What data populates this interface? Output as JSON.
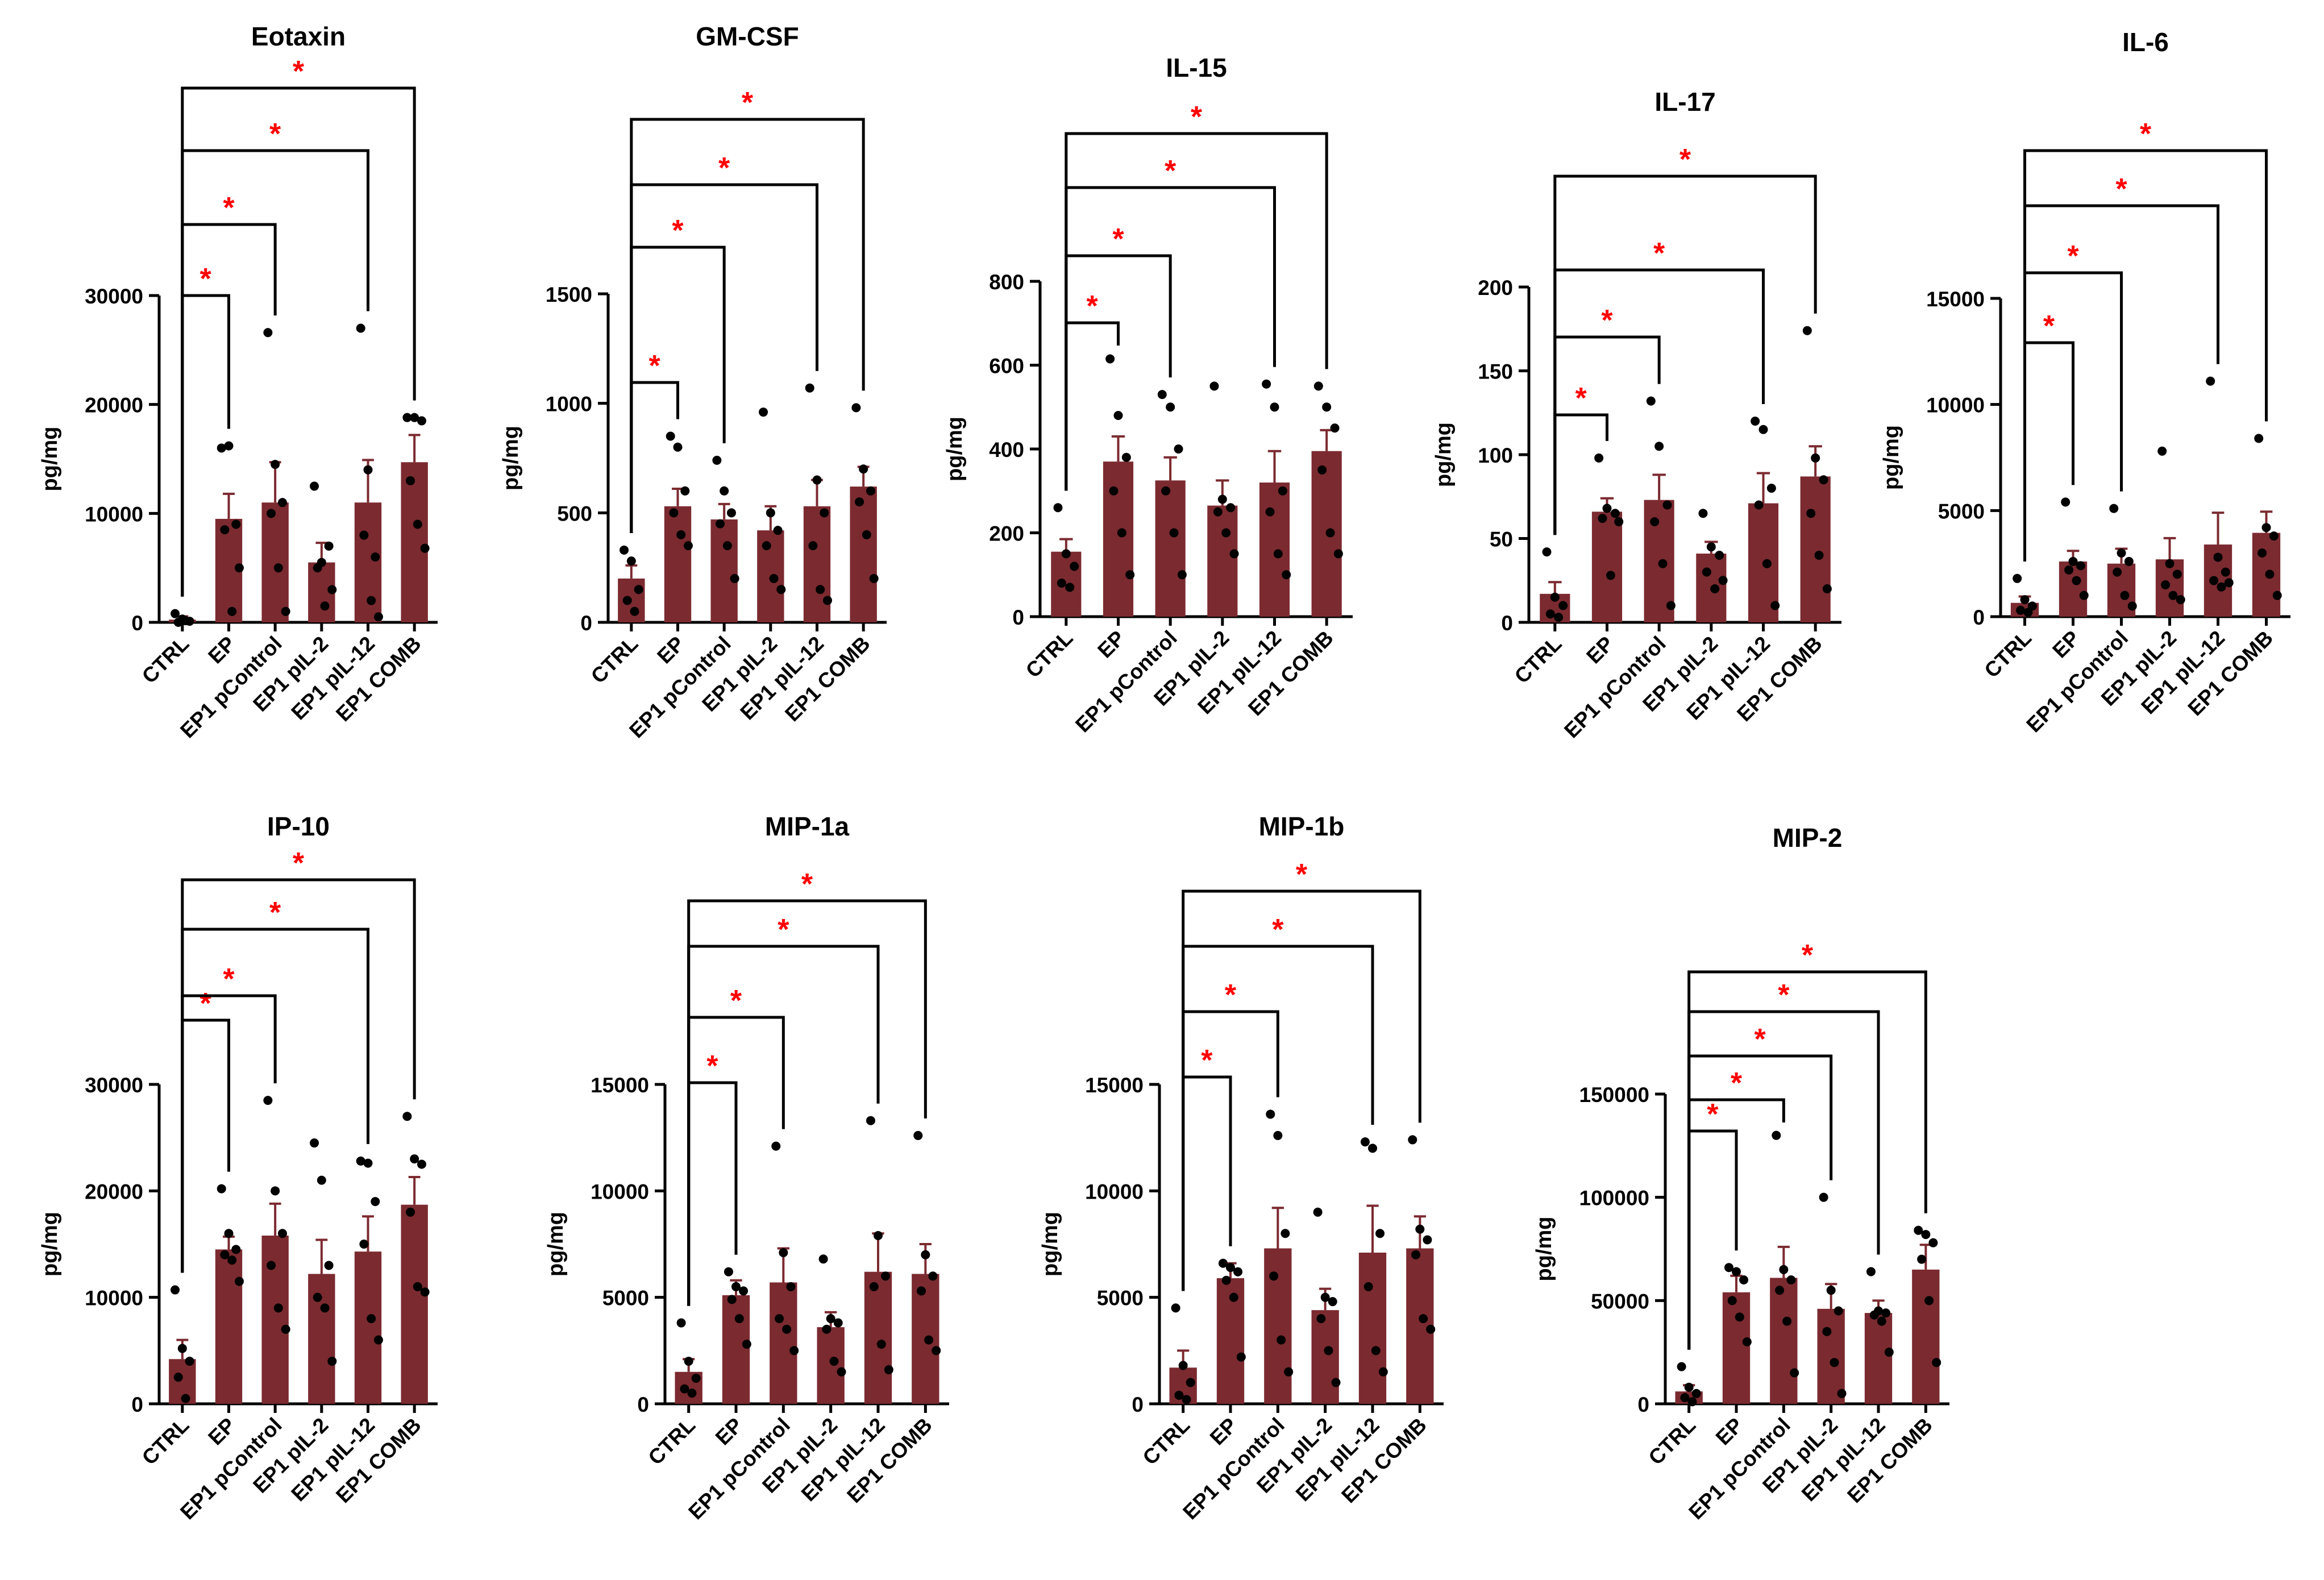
{
  "figure": {
    "colors": {
      "bar": "#7b2a30",
      "axis": "#000000",
      "star": "#ff0000",
      "point": "#000000"
    },
    "group_labels": [
      "CTRL",
      "EP",
      "EP1 pControl",
      "EP1 pIL-2",
      "EP1 pIL-12",
      "EP1 COMB"
    ],
    "significance_symbol": "*"
  },
  "chart_data": [
    {
      "type": "bar",
      "title": "Eotaxin",
      "ylabel": "pg/mg",
      "categories": [
        "CTRL",
        "EP",
        "EP1 pControl",
        "EP1 pIL-2",
        "EP1 pIL-12",
        "EP1 COMB"
      ],
      "values": [
        250,
        9500,
        11000,
        5500,
        11000,
        14700
      ],
      "sem": [
        300,
        2300,
        3700,
        1800,
        3900,
        2500
      ],
      "points": [
        [
          800,
          300,
          100,
          0,
          150
        ],
        [
          16000,
          16200,
          9000,
          8500,
          1000,
          5000
        ],
        [
          26600,
          14500,
          11000,
          10000,
          5000,
          1000
        ],
        [
          12500,
          5500,
          7000,
          5000,
          1500,
          3000
        ],
        [
          27000,
          14000,
          6000,
          8000,
          2000,
          500
        ],
        [
          18800,
          18800,
          18500,
          13000,
          9000,
          6800
        ]
      ],
      "ylim": [
        0,
        30000
      ],
      "yticks": [
        0,
        10000,
        20000,
        30000
      ],
      "ytick_labels": [
        "0",
        "10000",
        "20000",
        "30000"
      ],
      "comparisons": [
        {
          "from": "CTRL",
          "to": "EP"
        },
        {
          "from": "CTRL",
          "to": "EP1 pControl"
        },
        {
          "from": "CTRL",
          "to": "EP1 pIL-12"
        },
        {
          "from": "CTRL",
          "to": "EP1 COMB"
        }
      ]
    },
    {
      "type": "bar",
      "title": "GM-CSF",
      "ylabel": "pg/mg",
      "categories": [
        "CTRL",
        "EP",
        "EP1 pControl",
        "EP1 pIL-2",
        "EP1 pIL-12",
        "EP1 COMB"
      ],
      "values": [
        200,
        530,
        470,
        420,
        530,
        620
      ],
      "sem": [
        60,
        80,
        70,
        110,
        120,
        90
      ],
      "points": [
        [
          330,
          280,
          150,
          100,
          50
        ],
        [
          850,
          800,
          600,
          500,
          400,
          350
        ],
        [
          740,
          600,
          500,
          450,
          350,
          200
        ],
        [
          960,
          500,
          420,
          350,
          200,
          150
        ],
        [
          1070,
          650,
          500,
          350,
          150,
          100
        ],
        [
          980,
          700,
          600,
          550,
          400,
          200
        ]
      ],
      "ylim": [
        0,
        1500
      ],
      "yticks": [
        0,
        500,
        1000,
        1500
      ],
      "ytick_labels": [
        "0",
        "500",
        "1000",
        "1500"
      ],
      "comparisons": [
        {
          "from": "CTRL",
          "to": "EP"
        },
        {
          "from": "CTRL",
          "to": "EP1 pControl"
        },
        {
          "from": "CTRL",
          "to": "EP1 pIL-12"
        },
        {
          "from": "CTRL",
          "to": "EP1 COMB"
        }
      ]
    },
    {
      "type": "bar",
      "title": "IL-15",
      "ylabel": "pg/mg",
      "categories": [
        "CTRL",
        "EP",
        "EP1 pControl",
        "EP1 pIL-2",
        "EP1 pIL-12",
        "EP1 COMB"
      ],
      "values": [
        155,
        370,
        325,
        265,
        320,
        395
      ],
      "sem": [
        30,
        60,
        55,
        60,
        75,
        50
      ],
      "points": [
        [
          260,
          150,
          120,
          80,
          70
        ],
        [
          615,
          480,
          380,
          300,
          200,
          100
        ],
        [
          530,
          500,
          400,
          300,
          200,
          100
        ],
        [
          550,
          280,
          260,
          250,
          200,
          150
        ],
        [
          555,
          500,
          300,
          250,
          150,
          100
        ],
        [
          550,
          500,
          450,
          350,
          200,
          150
        ]
      ],
      "ylim": [
        0,
        800
      ],
      "yticks": [
        0,
        200,
        400,
        600,
        800
      ],
      "ytick_labels": [
        "0",
        "200",
        "400",
        "600",
        "800"
      ],
      "comparisons": [
        {
          "from": "CTRL",
          "to": "EP"
        },
        {
          "from": "CTRL",
          "to": "EP1 pControl"
        },
        {
          "from": "CTRL",
          "to": "EP1 pIL-12"
        },
        {
          "from": "CTRL",
          "to": "EP1 COMB"
        }
      ]
    },
    {
      "type": "bar",
      "title": "IL-17",
      "ylabel": "pg/mg",
      "categories": [
        "CTRL",
        "EP",
        "EP1 pControl",
        "EP1 pIL-2",
        "EP1 pIL-12",
        "EP1 COMB"
      ],
      "values": [
        17,
        66,
        73,
        41,
        71,
        87
      ],
      "sem": [
        7,
        8,
        15,
        7,
        18,
        18
      ],
      "points": [
        [
          42,
          15,
          10,
          5,
          3
        ],
        [
          98,
          68,
          65,
          62,
          28,
          60
        ],
        [
          132,
          105,
          70,
          60,
          35,
          10
        ],
        [
          65,
          45,
          40,
          30,
          20,
          25
        ],
        [
          120,
          115,
          80,
          70,
          35,
          10
        ],
        [
          174,
          98,
          85,
          65,
          40,
          20
        ]
      ],
      "ylim": [
        0,
        200
      ],
      "yticks": [
        0,
        50,
        100,
        150,
        200
      ],
      "ytick_labels": [
        "0",
        "50",
        "100",
        "150",
        "200"
      ],
      "comparisons": [
        {
          "from": "CTRL",
          "to": "EP"
        },
        {
          "from": "CTRL",
          "to": "EP1 pControl"
        },
        {
          "from": "CTRL",
          "to": "EP1 pIL-12"
        },
        {
          "from": "CTRL",
          "to": "EP1 COMB"
        }
      ]
    },
    {
      "type": "bar",
      "title": "IL-6",
      "ylabel": "pg/mg",
      "categories": [
        "CTRL",
        "EP",
        "EP1 pControl",
        "EP1 pIL-2",
        "EP1 pIL-12",
        "EP1 COMB"
      ],
      "values": [
        650,
        2600,
        2500,
        2700,
        3400,
        3950
      ],
      "sem": [
        300,
        500,
        700,
        1000,
        1500,
        1000
      ],
      "points": [
        [
          1800,
          800,
          500,
          300,
          200
        ],
        [
          5400,
          2600,
          2400,
          2200,
          1700,
          1000
        ],
        [
          5100,
          3000,
          2600,
          2100,
          1000,
          500
        ],
        [
          7800,
          2500,
          2000,
          1500,
          1000,
          800
        ],
        [
          11100,
          2800,
          2100,
          1700,
          1400,
          1600
        ],
        [
          8400,
          4200,
          3800,
          3000,
          2000,
          1000
        ]
      ],
      "ylim": [
        0,
        15000
      ],
      "yticks": [
        0,
        5000,
        10000,
        15000
      ],
      "ytick_labels": [
        "0",
        "5000",
        "10000",
        "15000"
      ],
      "comparisons": [
        {
          "from": "CTRL",
          "to": "EP"
        },
        {
          "from": "CTRL",
          "to": "EP1 pControl"
        },
        {
          "from": "CTRL",
          "to": "EP1 pIL-12"
        },
        {
          "from": "CTRL",
          "to": "EP1 COMB"
        }
      ]
    },
    {
      "type": "bar",
      "title": "IP-10",
      "ylabel": "pg/mg",
      "categories": [
        "CTRL",
        "EP",
        "EP1 pControl",
        "EP1 pIL-2",
        "EP1 pIL-12",
        "EP1 COMB"
      ],
      "values": [
        4200,
        14500,
        15800,
        12200,
        14300,
        18700
      ],
      "sem": [
        1800,
        1200,
        3000,
        3200,
        3300,
        2600
      ],
      "points": [
        [
          10700,
          5200,
          4000,
          2500,
          500
        ],
        [
          20200,
          16000,
          14500,
          14000,
          13500,
          11500
        ],
        [
          28500,
          20000,
          16000,
          13000,
          9000,
          7000
        ],
        [
          24500,
          21000,
          13000,
          10000,
          9000,
          4000
        ],
        [
          22800,
          22600,
          19000,
          15000,
          8000,
          6000
        ],
        [
          27000,
          23000,
          22500,
          18000,
          11000,
          10500
        ]
      ],
      "ylim": [
        0,
        30000
      ],
      "yticks": [
        0,
        10000,
        20000,
        30000
      ],
      "ytick_labels": [
        "0",
        "10000",
        "20000",
        "30000"
      ],
      "comparisons": [
        {
          "from": "CTRL",
          "to": "EP"
        },
        {
          "from": "CTRL",
          "to": "EP1 pControl"
        },
        {
          "from": "CTRL",
          "to": "EP1 pIL-12"
        },
        {
          "from": "CTRL",
          "to": "EP1 COMB"
        }
      ]
    },
    {
      "type": "bar",
      "title": "MIP-1a",
      "ylabel": "pg/mg",
      "categories": [
        "CTRL",
        "EP",
        "EP1 pControl",
        "EP1 pIL-2",
        "EP1 pIL-12",
        "EP1 COMB"
      ],
      "values": [
        1500,
        5100,
        5700,
        3600,
        6200,
        6100
      ],
      "sem": [
        600,
        700,
        1600,
        700,
        1800,
        1400
      ],
      "points": [
        [
          3800,
          2000,
          1200,
          700,
          500
        ],
        [
          6200,
          5500,
          5300,
          4900,
          4000,
          2800
        ],
        [
          12100,
          7100,
          5500,
          4000,
          3500,
          2500
        ],
        [
          6800,
          4000,
          3800,
          3500,
          2000,
          1500
        ],
        [
          13300,
          7900,
          6000,
          5500,
          2800,
          1600
        ],
        [
          12600,
          7000,
          6000,
          5300,
          3000,
          2500
        ]
      ],
      "ylim": [
        0,
        15000
      ],
      "yticks": [
        0,
        5000,
        10000,
        15000
      ],
      "ytick_labels": [
        "0",
        "5000",
        "10000",
        "15000"
      ],
      "comparisons": [
        {
          "from": "CTRL",
          "to": "EP"
        },
        {
          "from": "CTRL",
          "to": "EP1 pControl"
        },
        {
          "from": "CTRL",
          "to": "EP1 pIL-12"
        },
        {
          "from": "CTRL",
          "to": "EP1 COMB"
        }
      ]
    },
    {
      "type": "bar",
      "title": "MIP-1b",
      "ylabel": "pg/mg",
      "categories": [
        "CTRL",
        "EP",
        "EP1 pControl",
        "EP1 pIL-2",
        "EP1 pIL-12",
        "EP1 COMB"
      ],
      "values": [
        1700,
        5900,
        7300,
        4400,
        7100,
        7300
      ],
      "sem": [
        800,
        700,
        1900,
        1000,
        2200,
        1500
      ],
      "points": [
        [
          4500,
          1800,
          1000,
          400,
          200
        ],
        [
          6600,
          6400,
          6200,
          5800,
          5000,
          2200
        ],
        [
          13600,
          12600,
          8000,
          6000,
          3000,
          1500
        ],
        [
          9000,
          5000,
          4800,
          4000,
          2500,
          1000
        ],
        [
          12300,
          12000,
          8000,
          5500,
          2500,
          1500
        ],
        [
          12400,
          8200,
          7700,
          7000,
          4000,
          3500
        ]
      ],
      "ylim": [
        0,
        15000
      ],
      "yticks": [
        0,
        5000,
        10000,
        15000
      ],
      "ytick_labels": [
        "0",
        "5000",
        "10000",
        "15000"
      ],
      "comparisons": [
        {
          "from": "CTRL",
          "to": "EP"
        },
        {
          "from": "CTRL",
          "to": "EP1 pControl"
        },
        {
          "from": "CTRL",
          "to": "EP1 pIL-12"
        },
        {
          "from": "CTRL",
          "to": "EP1 COMB"
        }
      ]
    },
    {
      "type": "bar",
      "title": "MIP-2",
      "ylabel": "pg/mg",
      "categories": [
        "CTRL",
        "EP",
        "EP1 pControl",
        "EP1 pIL-2",
        "EP1 pIL-12",
        "EP1 COMB"
      ],
      "values": [
        6000,
        54000,
        61000,
        46000,
        44000,
        65000
      ],
      "sem": [
        3000,
        8000,
        15000,
        12000,
        6000,
        12000
      ],
      "points": [
        [
          18000,
          8000,
          5000,
          3000,
          1000
        ],
        [
          66000,
          64000,
          60000,
          50000,
          42000,
          30000
        ],
        [
          130000,
          65000,
          60000,
          55000,
          40000,
          15000
        ],
        [
          100000,
          55000,
          45000,
          35000,
          20000,
          5000
        ],
        [
          64000,
          45000,
          44000,
          43000,
          40000,
          25000
        ],
        [
          84000,
          82000,
          78000,
          70000,
          50000,
          20000
        ]
      ],
      "ylim": [
        0,
        150000
      ],
      "yticks": [
        0,
        50000,
        100000,
        150000
      ],
      "ytick_labels": [
        "0",
        "50000",
        "100000",
        "150000"
      ],
      "comparisons": [
        {
          "from": "CTRL",
          "to": "EP"
        },
        {
          "from": "CTRL",
          "to": "EP1 pControl"
        },
        {
          "from": "CTRL",
          "to": "EP1 pIL-2"
        },
        {
          "from": "CTRL",
          "to": "EP1 pIL-12"
        },
        {
          "from": "CTRL",
          "to": "EP1 COMB"
        }
      ]
    }
  ]
}
